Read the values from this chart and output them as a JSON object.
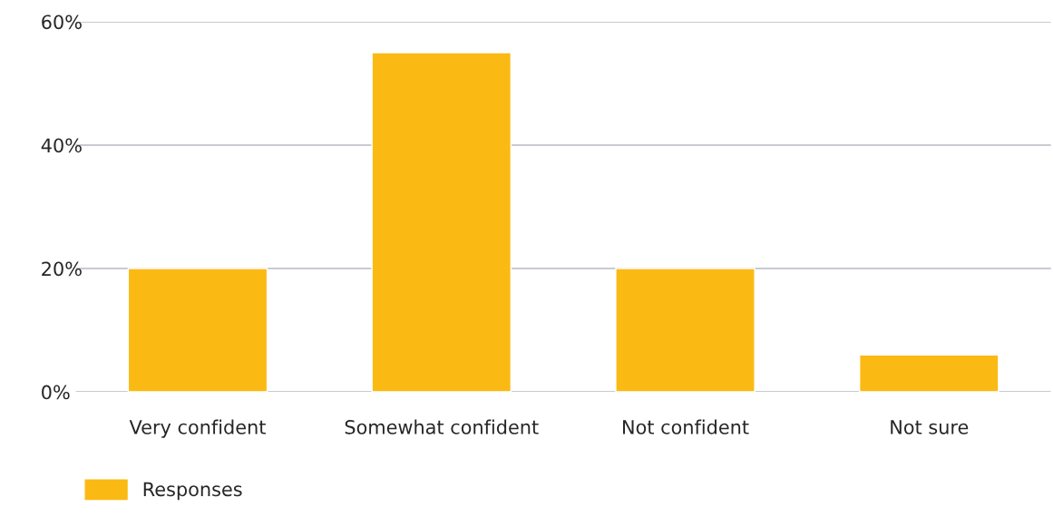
{
  "chart_data": {
    "type": "bar",
    "categories": [
      "Very confident",
      "Somewhat confident",
      "Not confident",
      "Not sure"
    ],
    "series": [
      {
        "name": "Responses",
        "color": "#fbb914",
        "values": [
          20,
          55,
          20,
          6
        ]
      }
    ],
    "ylim": [
      0,
      60
    ],
    "yticks": [
      {
        "value": 0,
        "label": "0%"
      },
      {
        "value": 20,
        "label": "20%"
      },
      {
        "value": 40,
        "label": "40%"
      },
      {
        "value": 60,
        "label": "60%"
      }
    ],
    "grid": "y",
    "legend": "bottom left"
  }
}
